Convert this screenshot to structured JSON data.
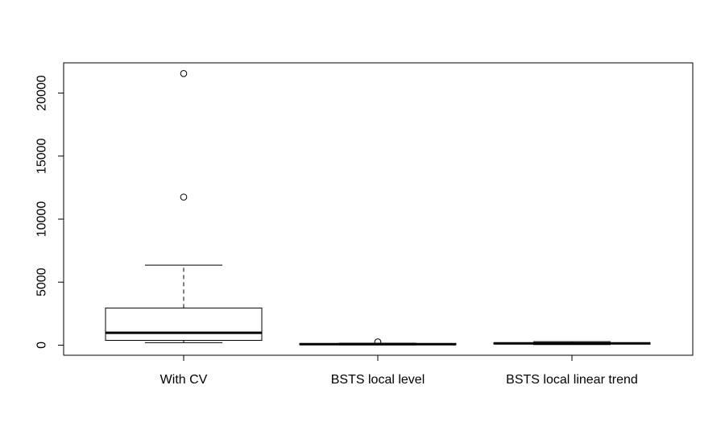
{
  "chart_data": {
    "type": "box",
    "title": "",
    "xlabel": "",
    "ylabel": "",
    "ylim": [
      -800,
      22400
    ],
    "yticks": [
      0,
      5000,
      10000,
      15000,
      20000
    ],
    "categories": [
      "With CV",
      "BSTS local level",
      "BSTS local linear trend"
    ],
    "boxes": [
      {
        "category": "With CV",
        "whisker_low": 200,
        "q1": 380,
        "median": 980,
        "q3": 2950,
        "whisker_high": 6350,
        "outliers": [
          11750,
          21550
        ]
      },
      {
        "category": "BSTS local level",
        "whisker_low": 20,
        "q1": 40,
        "median": 80,
        "q3": 120,
        "whisker_high": 160,
        "outliers": [
          260
        ]
      },
      {
        "category": "BSTS local linear trend",
        "whisker_low": 50,
        "q1": 90,
        "median": 140,
        "q3": 190,
        "whisker_high": 280,
        "outliers": []
      }
    ]
  }
}
